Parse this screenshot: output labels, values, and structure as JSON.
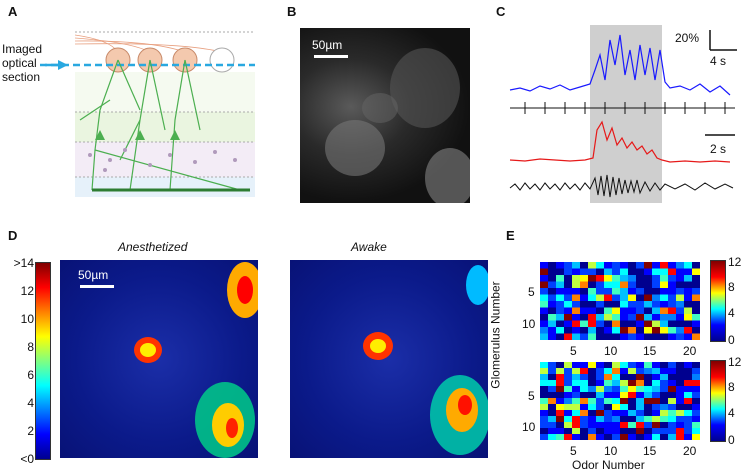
{
  "panels": {
    "A": {
      "label": "A",
      "line1": "Imaged",
      "line2": "optical",
      "line3": "section"
    },
    "B": {
      "label": "B",
      "scalebar": "50µm"
    },
    "C": {
      "label": "C",
      "scale_pct": "20%",
      "scale_t1": "4 s",
      "scale_t2": "2 s"
    },
    "D": {
      "label": "D",
      "title_left": "Anesthetized",
      "title_right": "Awake",
      "scalebar": "50µm",
      "colorbar_ticks": [
        ">14",
        "12",
        "10",
        "8",
        "6",
        "4",
        "2",
        "<0"
      ]
    },
    "E": {
      "label": "E",
      "ylabel": "Glomerulus Number",
      "xlabel": "Odor Number",
      "yticks_top": [
        "5",
        "10"
      ],
      "yticks_bottom": [
        "5",
        "10"
      ],
      "xticks": [
        "5",
        "10",
        "15",
        "20"
      ],
      "cbar_ticks": [
        "12",
        "8",
        "4",
        "0"
      ]
    }
  },
  "colors": {
    "blue_trace": "#1a1aff",
    "red_trace": "#e61919",
    "grey_stim": "#cfcfcf",
    "arrow": "#29a8e0"
  }
}
